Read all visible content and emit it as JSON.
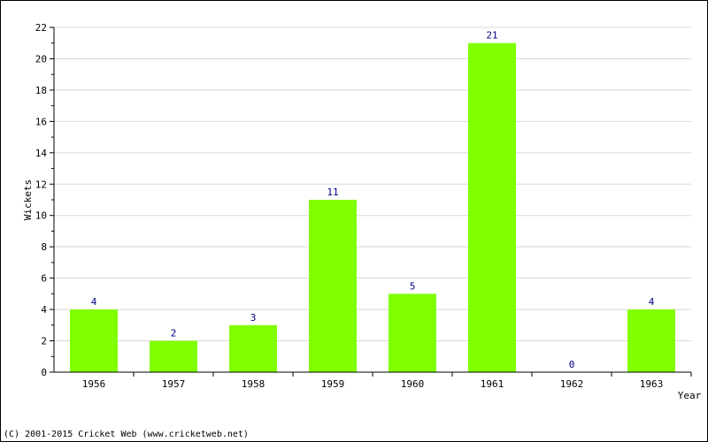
{
  "chart_data": {
    "type": "bar",
    "title": "",
    "xlabel": "Year",
    "ylabel": "Wickets",
    "categories": [
      "1956",
      "1957",
      "1958",
      "1959",
      "1960",
      "1961",
      "1962",
      "1963"
    ],
    "values": [
      4,
      2,
      3,
      11,
      5,
      21,
      0,
      4
    ],
    "ylim": [
      0,
      22
    ],
    "yticks": [
      0,
      2,
      4,
      6,
      8,
      10,
      12,
      14,
      16,
      18,
      20,
      22
    ],
    "grid": true,
    "legend": "none",
    "bar_color": "#80ff00",
    "value_label_color": "#000080",
    "grid_color": "#d8d8d8"
  },
  "footer": {
    "copyright": "(C) 2001-2015 Cricket Web (www.cricketweb.net)"
  }
}
